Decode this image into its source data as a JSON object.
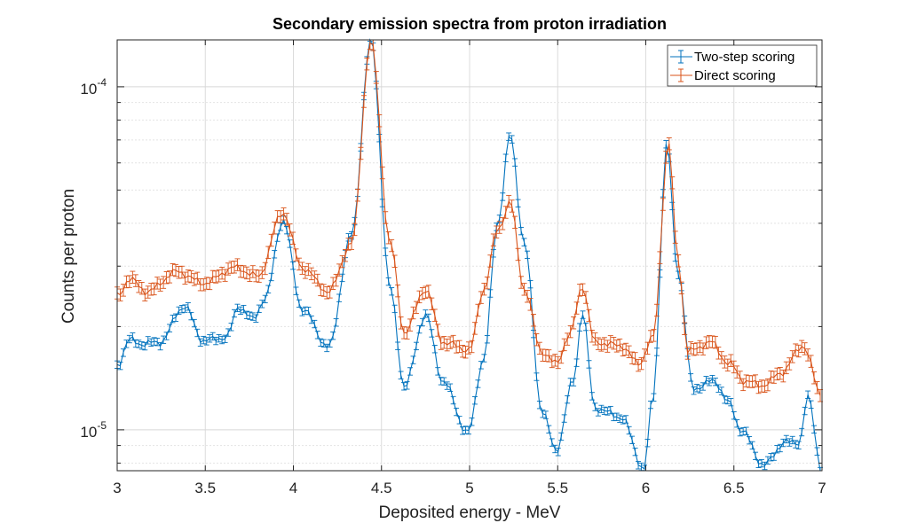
{
  "chart_data": {
    "type": "line",
    "title": "Secondary emission spectra from proton irradiation",
    "xlabel": "Deposited energy - MeV",
    "ylabel": "Counts per proton",
    "xlim": [
      3,
      7
    ],
    "ylim": [
      7.6e-06,
      0.000137
    ],
    "yscale": "log",
    "grid": true,
    "legend_position": "top-right",
    "x_ticks": [
      "3",
      "3.5",
      "4",
      "4.5",
      "5",
      "5.5",
      "6",
      "6.5",
      "7"
    ],
    "x_tick_values": [
      3,
      3.5,
      4,
      4.5,
      5,
      5.5,
      6,
      6.5,
      7
    ],
    "y_ticks": [
      {
        "base": "10",
        "exp": "-4",
        "value": 0.0001
      },
      {
        "base": "10",
        "exp": "-5",
        "value": 1e-05
      }
    ],
    "error_bars": true,
    "series": [
      {
        "name": "Two-step scoring",
        "color": "#0072BD",
        "x": [
          3.0,
          3.07,
          3.14,
          3.24,
          3.38,
          3.49,
          3.62,
          3.69,
          3.77,
          3.84,
          3.94,
          4.05,
          4.2,
          4.33,
          4.44,
          4.55,
          4.63,
          4.75,
          4.85,
          4.99,
          5.08,
          5.16,
          5.23,
          5.31,
          5.41,
          5.49,
          5.59,
          5.64,
          5.71,
          5.86,
          5.99,
          6.04,
          6.12,
          6.18,
          6.27,
          6.39,
          6.47,
          6.54,
          6.67,
          6.79,
          6.87,
          6.92,
          7.0
        ],
        "values": [
          1.54e-05,
          1.83e-05,
          1.78e-05,
          1.8e-05,
          2.29e-05,
          1.82e-05,
          1.86e-05,
          2.29e-05,
          2.1e-05,
          2.42e-05,
          4.08e-05,
          2.25e-05,
          1.74e-05,
          3.69e-05,
          0.000137,
          2.57e-05,
          1.33e-05,
          2.16e-05,
          1.38e-05,
          9.8e-06,
          1.61e-05,
          4.02e-05,
          7.2e-05,
          3.52e-05,
          1.14e-05,
          8.7e-06,
          1.39e-05,
          2.21e-05,
          1.16e-05,
          1.09e-05,
          7.7e-06,
          1.24e-05,
          6.76e-05,
          2.92e-05,
          1.32e-05,
          1.39e-05,
          1.2e-05,
          1e-05,
          7.9e-06,
          9.2e-06,
          9.2e-06,
          1.24e-05,
          7.6e-06
        ]
      },
      {
        "name": "Direct scoring",
        "color": "#D95319",
        "x": [
          3.0,
          3.07,
          3.17,
          3.34,
          3.49,
          3.67,
          3.8,
          3.94,
          4.05,
          4.2,
          4.33,
          4.44,
          4.55,
          4.63,
          4.75,
          4.85,
          5.0,
          5.08,
          5.16,
          5.23,
          5.31,
          5.41,
          5.49,
          5.57,
          5.64,
          5.71,
          5.86,
          5.96,
          6.04,
          6.13,
          6.18,
          6.24,
          6.37,
          6.47,
          6.57,
          6.67,
          6.77,
          6.89,
          7.0
        ],
        "values": [
          2.45e-05,
          2.75e-05,
          2.53e-05,
          2.89e-05,
          2.68e-05,
          2.97e-05,
          2.8e-05,
          4.3e-05,
          2.97e-05,
          2.53e-05,
          3.49e-05,
          0.000135,
          3.49e-05,
          1.92e-05,
          2.57e-05,
          1.8e-05,
          1.71e-05,
          2.57e-05,
          3.83e-05,
          4.6e-05,
          2.57e-05,
          1.69e-05,
          1.56e-05,
          1.9e-05,
          2.63e-05,
          1.8e-05,
          1.76e-05,
          1.56e-05,
          1.85e-05,
          6.8e-05,
          3.19e-05,
          1.69e-05,
          1.8e-05,
          1.56e-05,
          1.38e-05,
          1.35e-05,
          1.47e-05,
          1.76e-05,
          1.26e-05
        ]
      }
    ]
  }
}
